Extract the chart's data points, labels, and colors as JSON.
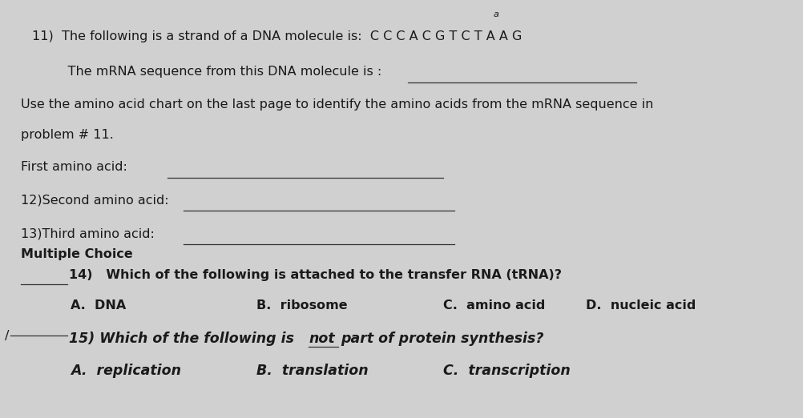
{
  "bg_color": "#d0d0d0",
  "paper_color": "#e4e4e4",
  "text_color": "#1a1a1a",
  "title_note": "a",
  "line11_label": "11)  The following is a strand of a DNA molecule is:  C C C A C G T C T A A G",
  "line11b_label": "     The mRNA sequence from this DNA molecule is :",
  "line_use": "Use the amino acid chart on the last page to identify the amino acids from the mRNA sequence in",
  "line_problem": "problem # 11.",
  "line_first": "First amino acid:",
  "line12": "12)Second amino acid:",
  "line13": "13)Third amino acid:",
  "line_mc": "Multiple Choice",
  "line14_q": "14)   Which of the following is attached to the transfer RNA (tRNA)?",
  "line14_A": "A.  DNA",
  "line14_B": "B.  ribosome",
  "line14_C": "C.  amino acid",
  "line14_D": "D.  nucleic acid",
  "line15_q": "15) Which of the following is",
  "line15_not": "not",
  "line15_q2": "part of protein synthesis?",
  "line15_A": "A.  replication",
  "line15_B": "B.  translation",
  "line15_C": "C.  transcription",
  "figsize": [
    10.02,
    5.22
  ],
  "dpi": 100
}
